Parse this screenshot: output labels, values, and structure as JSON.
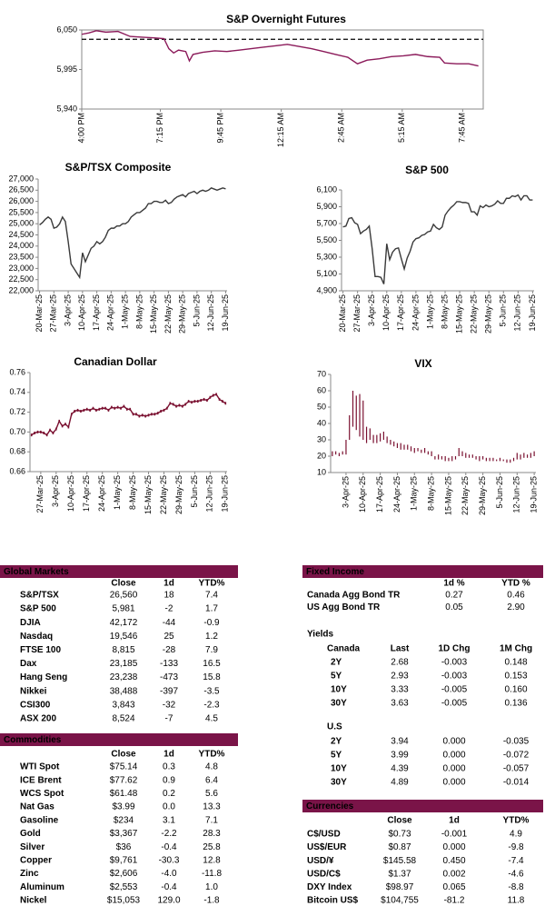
{
  "chart_data": [
    {
      "type": "line",
      "title": "S&P Overnight Futures",
      "color": "#8b1a5a",
      "frame": true,
      "x": [
        0,
        0.3,
        0.6,
        1,
        1.5,
        2,
        2.5,
        3,
        3.4,
        3.6,
        3.8,
        4,
        4.3,
        4.45,
        4.6,
        5,
        5.5,
        6,
        6.5,
        7,
        7.5,
        8,
        8.5,
        9,
        9.5,
        10,
        10.5,
        11,
        11.4,
        11.8,
        12.3,
        12.8,
        13.3,
        13.8,
        14.3,
        14.8,
        15,
        15.5,
        16,
        16.4
      ],
      "values": [
        6044,
        6046,
        6049,
        6047,
        6048,
        6041,
        6040,
        6039,
        6038,
        6024,
        6018,
        6022,
        6020,
        6007,
        6016,
        6019,
        6021,
        6020,
        6022,
        6024,
        6026,
        6028,
        6030,
        6027,
        6024,
        6020,
        6016,
        6012,
        6003,
        6008,
        6010,
        6013,
        6014,
        6016,
        6013,
        6012,
        6004,
        6003,
        6003,
        6000
      ],
      "reference_line": 6037,
      "xlim": [
        0,
        16.6
      ],
      "xticks": [
        {
          "value": 0,
          "label": "4:00 PM"
        },
        {
          "value": 3.25,
          "label": "7:15 PM"
        },
        {
          "value": 5.75,
          "label": "9:45 PM"
        },
        {
          "value": 8.25,
          "label": "12:15 AM"
        },
        {
          "value": 10.75,
          "label": "2:45 AM"
        },
        {
          "value": 13.25,
          "label": "5:15 AM"
        },
        {
          "value": 15.75,
          "label": "7:45 AM"
        }
      ],
      "ylim": [
        5940,
        6050
      ],
      "yticks": [
        {
          "value": 5940,
          "label": "5,940"
        },
        {
          "value": 5995,
          "label": "5,995"
        },
        {
          "value": 6050,
          "label": "6,050"
        }
      ]
    },
    {
      "type": "line",
      "title": "S&P/TSX Composite",
      "color": "#3a3a3a",
      "frame": false,
      "categories": [
        "20-Mar-25",
        null,
        null,
        null,
        null,
        "27-Mar-25",
        null,
        null,
        null,
        null,
        "3-Apr-25",
        null,
        null,
        null,
        null,
        "10-Apr-25",
        null,
        null,
        null,
        null,
        "17-Apr-25",
        null,
        null,
        null,
        null,
        "24-Apr-25",
        null,
        null,
        null,
        null,
        "1-May-25",
        null,
        null,
        null,
        null,
        "8-May-25",
        null,
        null,
        null,
        null,
        "15-May-25",
        null,
        null,
        null,
        null,
        "22-May-25",
        null,
        null,
        null,
        null,
        "29-May-25",
        null,
        null,
        null,
        null,
        "5-Jun-25",
        null,
        null,
        null,
        null,
        "12-Jun-25",
        null,
        null,
        null,
        null,
        "19-Jun-25"
      ],
      "values": [
        24950,
        25050,
        25200,
        25300,
        25200,
        24800,
        24850,
        25000,
        25300,
        25100,
        24200,
        23200,
        23000,
        22800,
        22600,
        23700,
        23300,
        23600,
        23900,
        24000,
        24200,
        24100,
        24200,
        24400,
        24700,
        24800,
        24800,
        24900,
        24900,
        25000,
        25000,
        25100,
        25300,
        25400,
        25500,
        25500,
        25600,
        25700,
        25900,
        25900,
        26000,
        26000,
        25950,
        25950,
        26050,
        25900,
        25950,
        26100,
        26200,
        26250,
        26300,
        26200,
        26350,
        26400,
        26450,
        26350,
        26450,
        26500,
        26450,
        26500,
        26600,
        26550,
        26500,
        26550,
        26600,
        26560
      ],
      "ylim": [
        22000,
        27000
      ],
      "yticks": [
        {
          "value": 22000,
          "label": "22,000"
        },
        {
          "value": 22500,
          "label": "22,500"
        },
        {
          "value": 23000,
          "label": "23,000"
        },
        {
          "value": 23500,
          "label": "23,500"
        },
        {
          "value": 24000,
          "label": "24,000"
        },
        {
          "value": 24500,
          "label": "24,500"
        },
        {
          "value": 25000,
          "label": "25,000"
        },
        {
          "value": 25500,
          "label": "25,500"
        },
        {
          "value": 26000,
          "label": "26,000"
        },
        {
          "value": 26500,
          "label": "26,500"
        },
        {
          "value": 27000,
          "label": "27,000"
        }
      ]
    },
    {
      "type": "line",
      "title": "S&P 500",
      "color": "#3a3a3a",
      "frame": false,
      "categories": [
        "20-Mar-25",
        null,
        null,
        null,
        null,
        "27-Mar-25",
        null,
        null,
        null,
        null,
        "3-Apr-25",
        null,
        null,
        null,
        null,
        "10-Apr-25",
        null,
        null,
        null,
        null,
        "17-Apr-25",
        null,
        null,
        null,
        null,
        "24-Apr-25",
        null,
        null,
        null,
        null,
        "1-May-25",
        null,
        null,
        null,
        null,
        "8-May-25",
        null,
        null,
        null,
        null,
        "15-May-25",
        null,
        null,
        null,
        null,
        "22-May-25",
        null,
        null,
        null,
        null,
        "29-May-25",
        null,
        null,
        null,
        null,
        "5-Jun-25",
        null,
        null,
        null,
        null,
        "12-Jun-25",
        null,
        null,
        null,
        null,
        "19-Jun-25"
      ],
      "values": [
        5660,
        5670,
        5760,
        5770,
        5710,
        5690,
        5580,
        5610,
        5630,
        5670,
        5400,
        5070,
        5070,
        5060,
        4980,
        5460,
        5270,
        5360,
        5400,
        5410,
        5280,
        5160,
        5290,
        5370,
        5480,
        5520,
        5530,
        5560,
        5570,
        5600,
        5610,
        5690,
        5650,
        5630,
        5660,
        5800,
        5850,
        5890,
        5920,
        5960,
        5960,
        5950,
        5950,
        5940,
        5840,
        5840,
        5800,
        5910,
        5890,
        5920,
        5900,
        5910,
        5930,
        5970,
        5940,
        5940,
        6000,
        6000,
        6030,
        6020,
        6040,
        5980,
        6030,
        6030,
        5980,
        5980
      ],
      "ylim": [
        4900,
        6100
      ],
      "yticks": [
        {
          "value": 4900,
          "label": "4,900"
        },
        {
          "value": 5100,
          "label": "5,100"
        },
        {
          "value": 5300,
          "label": "5,300"
        },
        {
          "value": 5500,
          "label": "5,500"
        },
        {
          "value": 5700,
          "label": "5,700"
        },
        {
          "value": 5900,
          "label": "5,900"
        },
        {
          "value": 6100,
          "label": "6,100"
        }
      ]
    },
    {
      "type": "line",
      "title": "Canadian Dollar",
      "color": "#7a1030",
      "markers": true,
      "frame": false,
      "categories": [
        null,
        null,
        null,
        "27-Mar-25",
        null,
        null,
        null,
        null,
        "3-Apr-25",
        null,
        null,
        null,
        null,
        "10-Apr-25",
        null,
        null,
        null,
        null,
        "17-Apr-25",
        null,
        null,
        null,
        null,
        "24-Apr-25",
        null,
        null,
        null,
        null,
        "1-May-25",
        null,
        null,
        null,
        null,
        "8-May-25",
        null,
        null,
        null,
        null,
        "15-May-25",
        null,
        null,
        null,
        null,
        "22-May-25",
        null,
        null,
        null,
        null,
        "29-May-25",
        null,
        null,
        null,
        null,
        "5-Jun-25",
        null,
        null,
        null,
        null,
        "12-Jun-25",
        null,
        null,
        null,
        null,
        "19-Jun-25"
      ],
      "values": [
        0.697,
        0.699,
        0.7,
        0.7,
        0.699,
        0.697,
        0.702,
        0.699,
        0.703,
        0.711,
        0.706,
        0.708,
        0.705,
        0.718,
        0.721,
        0.722,
        0.721,
        0.722,
        0.723,
        0.722,
        0.724,
        0.722,
        0.723,
        0.724,
        0.724,
        0.722,
        0.725,
        0.724,
        0.725,
        0.724,
        0.726,
        0.723,
        0.723,
        0.718,
        0.718,
        0.716,
        0.717,
        0.716,
        0.717,
        0.718,
        0.718,
        0.719,
        0.721,
        0.722,
        0.724,
        0.729,
        0.728,
        0.726,
        0.727,
        0.726,
        0.728,
        0.731,
        0.73,
        0.731,
        0.731,
        0.732,
        0.733,
        0.732,
        0.735,
        0.737,
        0.738,
        0.733,
        0.731,
        0.729
      ],
      "ylim": [
        0.66,
        0.76
      ],
      "yticks": [
        0.66,
        0.68,
        {
          "value": 0.7,
          "label": "0.70"
        },
        0.72,
        0.74,
        0.76
      ]
    },
    {
      "type": "hilo",
      "title": "VIX",
      "color": "#7a1030",
      "frame": false,
      "categories": [
        null,
        null,
        null,
        null,
        "3-Apr-25",
        null,
        null,
        null,
        null,
        "10-Apr-25",
        null,
        null,
        null,
        null,
        "17-Apr-25",
        null,
        null,
        null,
        null,
        "24-Apr-25",
        null,
        null,
        null,
        null,
        "1-May-25",
        null,
        null,
        null,
        null,
        "8-May-25",
        null,
        null,
        null,
        null,
        "15-May-25",
        null,
        null,
        null,
        null,
        "22-May-25",
        null,
        null,
        null,
        null,
        "29-May-25",
        null,
        null,
        null,
        null,
        "5-Jun-25",
        null,
        null,
        null,
        null,
        "12-Jun-25",
        null,
        null,
        null,
        null,
        "19-Jun-25"
      ],
      "high": [
        23,
        23,
        22,
        23,
        30,
        45,
        60,
        57,
        58,
        54,
        38,
        37,
        33,
        33,
        34,
        35,
        32,
        30,
        29,
        28,
        28,
        27,
        27,
        26,
        25,
        25,
        24,
        25,
        23,
        23,
        20,
        21,
        20,
        20,
        19,
        20,
        20,
        25,
        23,
        22,
        21,
        21,
        20,
        20,
        20,
        19,
        19,
        19,
        18,
        19,
        18,
        18,
        18,
        19,
        22,
        21,
        22,
        21,
        22,
        23
      ],
      "low": [
        20,
        21,
        20,
        21,
        21,
        30,
        38,
        36,
        32,
        30,
        28,
        30,
        28,
        28,
        29,
        30,
        28,
        27,
        26,
        25,
        24,
        24,
        24,
        23,
        22,
        23,
        22,
        22,
        21,
        20,
        18,
        18,
        18,
        17,
        17,
        17,
        18,
        20,
        20,
        19,
        19,
        19,
        18,
        17,
        18,
        17,
        17,
        17,
        17,
        17,
        17,
        16,
        16,
        17,
        18,
        18,
        19,
        19,
        19,
        20
      ],
      "ylim": [
        10,
        70
      ],
      "yticks": [
        10,
        20,
        30,
        40,
        50,
        60,
        70
      ]
    }
  ],
  "tables": {
    "global_markets": {
      "title": "Global Markets",
      "columns": [
        "Close",
        "1d",
        "YTD%"
      ],
      "rows": [
        [
          "S&P/TSX",
          "26,560",
          "18",
          "7.4"
        ],
        [
          "S&P 500",
          "5,981",
          "-2",
          "1.7"
        ],
        [
          "DJIA",
          "42,172",
          "-44",
          "-0.9"
        ],
        [
          "Nasdaq",
          "19,546",
          "25",
          "1.2"
        ],
        [
          "FTSE 100",
          "8,815",
          "-28",
          "7.9"
        ],
        [
          "Dax",
          "23,185",
          "-133",
          "16.5"
        ],
        [
          "Hang Seng",
          "23,238",
          "-473",
          "15.8"
        ],
        [
          "Nikkei",
          "38,488",
          "-397",
          "-3.5"
        ],
        [
          "CSI300",
          "3,843",
          "-32",
          "-2.3"
        ],
        [
          "ASX 200",
          "8,524",
          "-7",
          "4.5"
        ]
      ]
    },
    "commodities": {
      "title": "Commodities",
      "columns": [
        "Close",
        "1d",
        "YTD%"
      ],
      "rows": [
        [
          "WTI Spot",
          "$75.14",
          "0.3",
          "4.8"
        ],
        [
          "ICE Brent",
          "$77.62",
          "0.9",
          "6.4"
        ],
        [
          "WCS Spot",
          "$61.48",
          "0.2",
          "5.6"
        ],
        [
          "Nat Gas",
          "$3.99",
          "0.0",
          "13.3"
        ],
        [
          "Gasoline",
          "$234",
          "3.1",
          "7.1"
        ],
        [
          "Gold",
          "$3,367",
          "-2.2",
          "28.3"
        ],
        [
          "Silver",
          "$36",
          "-0.4",
          "25.8"
        ],
        [
          "Copper",
          "$9,761",
          "-30.3",
          "12.8"
        ],
        [
          "Zinc",
          "$2,606",
          "-4.0",
          "-11.8"
        ],
        [
          "Aluminum",
          "$2,553",
          "-0.4",
          "1.0"
        ],
        [
          "Nickel",
          "$15,053",
          "129.0",
          "-1.8"
        ]
      ]
    },
    "fixed_income": {
      "title": "Fixed Income",
      "columns": [
        "1d %",
        "YTD %"
      ],
      "rows": [
        [
          "Canada Agg Bond TR",
          "0.27",
          "0.46"
        ],
        [
          "US Agg Bond TR",
          "0.05",
          "2.90"
        ]
      ]
    },
    "yields": {
      "title": "Yields",
      "groups": [
        {
          "name": "Canada",
          "columns": [
            "Last",
            "1D Chg",
            "1M Chg"
          ],
          "rows": [
            [
              "2Y",
              "2.68",
              "-0.003",
              "0.148"
            ],
            [
              "5Y",
              "2.93",
              "-0.003",
              "0.153"
            ],
            [
              "10Y",
              "3.33",
              "-0.005",
              "0.160"
            ],
            [
              "30Y",
              "3.63",
              "-0.005",
              "0.136"
            ]
          ]
        },
        {
          "name": "U.S",
          "rows": [
            [
              "2Y",
              "3.94",
              "0.000",
              "-0.035"
            ],
            [
              "5Y",
              "3.99",
              "0.000",
              "-0.072"
            ],
            [
              "10Y",
              "4.39",
              "0.000",
              "-0.057"
            ],
            [
              "30Y",
              "4.89",
              "0.000",
              "-0.014"
            ]
          ]
        }
      ]
    },
    "currencies": {
      "title": "Currencies",
      "columns": [
        "Close",
        "1d",
        "YTD%"
      ],
      "rows": [
        [
          "C$/USD",
          "$0.73",
          "-0.001",
          "4.9"
        ],
        [
          "US$/EUR",
          "$0.87",
          "0.000",
          "-9.8"
        ],
        [
          "USD/¥",
          "$145.58",
          "0.450",
          "-7.4"
        ],
        [
          "USD/C$",
          "$1.37",
          "0.002",
          "-4.6"
        ],
        [
          "DXY Index",
          "$98.97",
          "0.065",
          "-8.8"
        ],
        [
          "Bitcoin US$",
          "$104,755",
          "-81.2",
          "11.8"
        ]
      ]
    }
  }
}
